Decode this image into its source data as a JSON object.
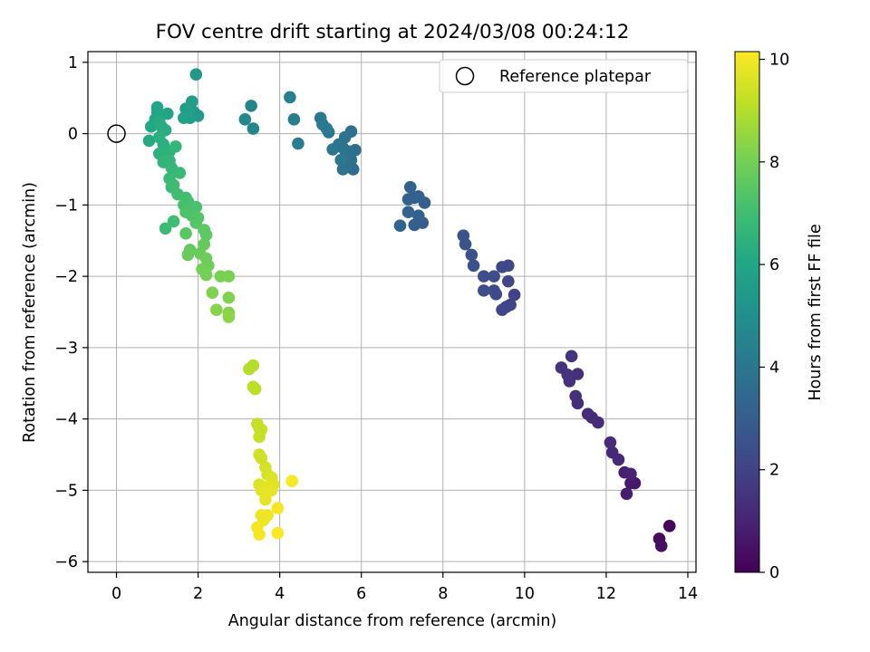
{
  "chart_data": {
    "type": "scatter",
    "title": "FOV centre drift starting at 2024/03/08 00:24:12",
    "xlabel": "Angular distance from reference (arcmin)",
    "ylabel": "Rotation from reference (arcmin)",
    "xlim": [
      -0.7,
      14.2
    ],
    "ylim": [
      -6.15,
      1.15
    ],
    "xticks": [
      0,
      2,
      4,
      6,
      8,
      10,
      12,
      14
    ],
    "yticks": [
      1,
      0,
      -1,
      -2,
      -3,
      -4,
      -5,
      -6
    ],
    "grid": true,
    "legend": {
      "placement": "top-right",
      "entries": [
        {
          "label": "Reference platepar",
          "marker": "open-circle"
        }
      ]
    },
    "reference_point": {
      "x": 0,
      "y": 0
    },
    "colorbar": {
      "label": "Hours from first FF file",
      "range": [
        0,
        10.15
      ],
      "ticks": [
        0,
        2,
        4,
        6,
        8,
        10
      ],
      "colormap": "viridis"
    },
    "points": [
      {
        "x": 13.55,
        "y": -5.5,
        "h": 0.2
      },
      {
        "x": 13.3,
        "y": -5.68,
        "h": 0.3
      },
      {
        "x": 13.35,
        "y": -5.78,
        "h": 0.4
      },
      {
        "x": 12.7,
        "y": -4.9,
        "h": 0.6
      },
      {
        "x": 12.6,
        "y": -4.9,
        "h": 0.7
      },
      {
        "x": 12.5,
        "y": -5.05,
        "h": 0.8
      },
      {
        "x": 12.45,
        "y": -4.75,
        "h": 0.9
      },
      {
        "x": 12.6,
        "y": -4.77,
        "h": 1.0
      },
      {
        "x": 12.3,
        "y": -4.57,
        "h": 1.1
      },
      {
        "x": 12.15,
        "y": -4.47,
        "h": 1.1
      },
      {
        "x": 12.1,
        "y": -4.33,
        "h": 1.2
      },
      {
        "x": 11.8,
        "y": -4.05,
        "h": 1.2
      },
      {
        "x": 11.65,
        "y": -3.98,
        "h": 1.3
      },
      {
        "x": 11.55,
        "y": -3.93,
        "h": 1.3
      },
      {
        "x": 11.3,
        "y": -3.78,
        "h": 1.3
      },
      {
        "x": 11.25,
        "y": -3.68,
        "h": 1.4
      },
      {
        "x": 11.3,
        "y": -3.37,
        "h": 1.4
      },
      {
        "x": 11.1,
        "y": -3.47,
        "h": 1.4
      },
      {
        "x": 11.05,
        "y": -3.38,
        "h": 1.5
      },
      {
        "x": 11.15,
        "y": -3.12,
        "h": 1.5
      },
      {
        "x": 10.9,
        "y": -3.28,
        "h": 1.5
      },
      {
        "x": 9.75,
        "y": -2.26,
        "h": 2.0
      },
      {
        "x": 9.65,
        "y": -2.4,
        "h": 2.0
      },
      {
        "x": 9.55,
        "y": -2.43,
        "h": 2.1
      },
      {
        "x": 9.45,
        "y": -2.47,
        "h": 2.1
      },
      {
        "x": 9.6,
        "y": -2.07,
        "h": 2.1
      },
      {
        "x": 9.6,
        "y": -1.85,
        "h": 2.2
      },
      {
        "x": 9.45,
        "y": -1.87,
        "h": 2.2
      },
      {
        "x": 9.3,
        "y": -2.25,
        "h": 2.3
      },
      {
        "x": 9.25,
        "y": -2.2,
        "h": 2.3
      },
      {
        "x": 9.25,
        "y": -2.0,
        "h": 2.4
      },
      {
        "x": 9.0,
        "y": -2.2,
        "h": 2.4
      },
      {
        "x": 9.0,
        "y": -2.0,
        "h": 2.4
      },
      {
        "x": 8.75,
        "y": -1.85,
        "h": 2.5
      },
      {
        "x": 8.7,
        "y": -1.7,
        "h": 2.5
      },
      {
        "x": 8.55,
        "y": -1.55,
        "h": 2.6
      },
      {
        "x": 8.5,
        "y": -1.43,
        "h": 2.6
      },
      {
        "x": 7.55,
        "y": -0.97,
        "h": 3.0
      },
      {
        "x": 7.5,
        "y": -1.25,
        "h": 3.0
      },
      {
        "x": 7.4,
        "y": -1.15,
        "h": 3.1
      },
      {
        "x": 7.3,
        "y": -1.28,
        "h": 3.1
      },
      {
        "x": 7.4,
        "y": -0.88,
        "h": 3.1
      },
      {
        "x": 7.3,
        "y": -0.9,
        "h": 3.2
      },
      {
        "x": 7.15,
        "y": -0.92,
        "h": 3.2
      },
      {
        "x": 7.2,
        "y": -0.75,
        "h": 3.2
      },
      {
        "x": 7.15,
        "y": -1.1,
        "h": 3.3
      },
      {
        "x": 6.95,
        "y": -1.29,
        "h": 3.3
      },
      {
        "x": 5.85,
        "y": -0.23,
        "h": 3.6
      },
      {
        "x": 5.8,
        "y": -0.5,
        "h": 3.6
      },
      {
        "x": 5.75,
        "y": -0.37,
        "h": 3.7
      },
      {
        "x": 5.7,
        "y": -0.25,
        "h": 3.7
      },
      {
        "x": 5.75,
        "y": 0.03,
        "h": 3.7
      },
      {
        "x": 5.65,
        "y": -0.45,
        "h": 3.8
      },
      {
        "x": 5.6,
        "y": -0.33,
        "h": 3.8
      },
      {
        "x": 5.55,
        "y": -0.5,
        "h": 3.8
      },
      {
        "x": 5.55,
        "y": -0.2,
        "h": 3.9
      },
      {
        "x": 5.6,
        "y": -0.05,
        "h": 3.9
      },
      {
        "x": 5.45,
        "y": -0.15,
        "h": 3.9
      },
      {
        "x": 5.5,
        "y": -0.37,
        "h": 4.0
      },
      {
        "x": 5.3,
        "y": -0.22,
        "h": 4.0
      },
      {
        "x": 5.2,
        "y": 0.02,
        "h": 4.0
      },
      {
        "x": 5.15,
        "y": 0.07,
        "h": 4.1
      },
      {
        "x": 5.05,
        "y": 0.13,
        "h": 4.1
      },
      {
        "x": 5.0,
        "y": 0.22,
        "h": 4.1
      },
      {
        "x": 4.45,
        "y": -0.14,
        "h": 4.3
      },
      {
        "x": 4.35,
        "y": 0.2,
        "h": 4.3
      },
      {
        "x": 4.25,
        "y": 0.51,
        "h": 4.4
      },
      {
        "x": 3.35,
        "y": 0.07,
        "h": 4.6
      },
      {
        "x": 3.3,
        "y": 0.39,
        "h": 4.6
      },
      {
        "x": 3.15,
        "y": 0.2,
        "h": 4.7
      },
      {
        "x": 1.95,
        "y": 0.83,
        "h": 5.4
      },
      {
        "x": 2.0,
        "y": 0.25,
        "h": 5.5
      },
      {
        "x": 1.9,
        "y": 0.3,
        "h": 5.5
      },
      {
        "x": 1.85,
        "y": 0.45,
        "h": 5.6
      },
      {
        "x": 1.8,
        "y": 0.22,
        "h": 5.6
      },
      {
        "x": 1.75,
        "y": 0.3,
        "h": 5.7
      },
      {
        "x": 1.7,
        "y": 0.35,
        "h": 5.7
      },
      {
        "x": 1.65,
        "y": 0.22,
        "h": 5.8
      },
      {
        "x": 1.25,
        "y": 0.28,
        "h": 5.9
      },
      {
        "x": 1.0,
        "y": 0.37,
        "h": 6.0
      },
      {
        "x": 1.0,
        "y": 0.3,
        "h": 6.0
      },
      {
        "x": 0.95,
        "y": 0.2,
        "h": 6.0
      },
      {
        "x": 0.85,
        "y": 0.1,
        "h": 6.1
      },
      {
        "x": 0.8,
        "y": -0.1,
        "h": 6.2
      },
      {
        "x": 1.05,
        "y": 0.17,
        "h": 6.2
      },
      {
        "x": 1.1,
        "y": 0.1,
        "h": 6.3
      },
      {
        "x": 1.2,
        "y": 0.05,
        "h": 6.3
      },
      {
        "x": 1.05,
        "y": -0.05,
        "h": 6.4
      },
      {
        "x": 1.15,
        "y": -0.15,
        "h": 6.4
      },
      {
        "x": 1.05,
        "y": -0.28,
        "h": 6.5
      },
      {
        "x": 1.3,
        "y": -0.25,
        "h": 6.5
      },
      {
        "x": 1.15,
        "y": -0.4,
        "h": 6.6
      },
      {
        "x": 1.3,
        "y": -0.38,
        "h": 6.6
      },
      {
        "x": 1.45,
        "y": -0.18,
        "h": 6.7
      },
      {
        "x": 1.35,
        "y": -0.48,
        "h": 6.7
      },
      {
        "x": 1.55,
        "y": -0.55,
        "h": 6.8
      },
      {
        "x": 1.3,
        "y": -0.63,
        "h": 6.8
      },
      {
        "x": 1.35,
        "y": -0.75,
        "h": 6.9
      },
      {
        "x": 1.4,
        "y": -0.72,
        "h": 6.9
      },
      {
        "x": 1.5,
        "y": -0.85,
        "h": 7.0
      },
      {
        "x": 1.7,
        "y": -0.9,
        "h": 7.0
      },
      {
        "x": 1.65,
        "y": -1.0,
        "h": 7.1
      },
      {
        "x": 1.75,
        "y": -0.95,
        "h": 7.1
      },
      {
        "x": 1.8,
        "y": -1.05,
        "h": 7.2
      },
      {
        "x": 1.95,
        "y": -1.03,
        "h": 7.2
      },
      {
        "x": 1.7,
        "y": -1.1,
        "h": 7.3
      },
      {
        "x": 1.85,
        "y": -1.15,
        "h": 7.3
      },
      {
        "x": 2.0,
        "y": -1.18,
        "h": 7.4
      },
      {
        "x": 1.95,
        "y": -1.25,
        "h": 7.4
      },
      {
        "x": 1.4,
        "y": -1.23,
        "h": 7.0
      },
      {
        "x": 1.2,
        "y": -1.33,
        "h": 6.9
      },
      {
        "x": 1.7,
        "y": -1.4,
        "h": 7.5
      },
      {
        "x": 2.15,
        "y": -1.35,
        "h": 7.6
      },
      {
        "x": 2.2,
        "y": -1.42,
        "h": 7.6
      },
      {
        "x": 2.15,
        "y": -1.55,
        "h": 7.7
      },
      {
        "x": 1.8,
        "y": -1.63,
        "h": 7.7
      },
      {
        "x": 1.75,
        "y": -1.7,
        "h": 7.8
      },
      {
        "x": 2.05,
        "y": -1.68,
        "h": 7.8
      },
      {
        "x": 2.2,
        "y": -1.75,
        "h": 7.9
      },
      {
        "x": 2.25,
        "y": -1.85,
        "h": 7.9
      },
      {
        "x": 2.1,
        "y": -1.9,
        "h": 8.0
      },
      {
        "x": 2.2,
        "y": -1.98,
        "h": 8.0
      },
      {
        "x": 2.55,
        "y": -2.0,
        "h": 8.1
      },
      {
        "x": 2.75,
        "y": -2.0,
        "h": 8.1
      },
      {
        "x": 2.35,
        "y": -2.23,
        "h": 8.2
      },
      {
        "x": 2.75,
        "y": -2.3,
        "h": 8.2
      },
      {
        "x": 2.45,
        "y": -2.47,
        "h": 8.3
      },
      {
        "x": 2.75,
        "y": -2.51,
        "h": 8.3
      },
      {
        "x": 2.75,
        "y": -2.57,
        "h": 8.4
      },
      {
        "x": 3.35,
        "y": -3.25,
        "h": 9.0
      },
      {
        "x": 3.25,
        "y": -3.3,
        "h": 9.0
      },
      {
        "x": 3.35,
        "y": -3.55,
        "h": 9.1
      },
      {
        "x": 3.4,
        "y": -3.58,
        "h": 9.1
      },
      {
        "x": 3.45,
        "y": -4.07,
        "h": 9.2
      },
      {
        "x": 3.5,
        "y": -4.13,
        "h": 9.2
      },
      {
        "x": 3.55,
        "y": -4.15,
        "h": 9.3
      },
      {
        "x": 3.5,
        "y": -4.25,
        "h": 9.3
      },
      {
        "x": 3.5,
        "y": -4.5,
        "h": 9.4
      },
      {
        "x": 3.55,
        "y": -4.55,
        "h": 9.4
      },
      {
        "x": 3.65,
        "y": -4.68,
        "h": 9.5
      },
      {
        "x": 3.7,
        "y": -4.78,
        "h": 9.5
      },
      {
        "x": 3.8,
        "y": -4.82,
        "h": 9.6
      },
      {
        "x": 3.5,
        "y": -4.92,
        "h": 9.6
      },
      {
        "x": 3.6,
        "y": -4.95,
        "h": 9.7
      },
      {
        "x": 3.85,
        "y": -4.92,
        "h": 9.7
      },
      {
        "x": 3.55,
        "y": -5.0,
        "h": 9.7
      },
      {
        "x": 3.8,
        "y": -5.0,
        "h": 9.8
      },
      {
        "x": 3.65,
        "y": -5.05,
        "h": 9.8
      },
      {
        "x": 3.65,
        "y": -5.13,
        "h": 9.8
      },
      {
        "x": 3.55,
        "y": -5.35,
        "h": 9.9
      },
      {
        "x": 3.7,
        "y": -5.35,
        "h": 9.9
      },
      {
        "x": 3.6,
        "y": -5.42,
        "h": 9.9
      },
      {
        "x": 3.45,
        "y": -5.52,
        "h": 10.0
      },
      {
        "x": 3.5,
        "y": -5.62,
        "h": 10.0
      },
      {
        "x": 3.95,
        "y": -5.25,
        "h": 10.0
      },
      {
        "x": 3.95,
        "y": -5.6,
        "h": 10.1
      },
      {
        "x": 4.3,
        "y": -4.87,
        "h": 10.1
      }
    ]
  }
}
